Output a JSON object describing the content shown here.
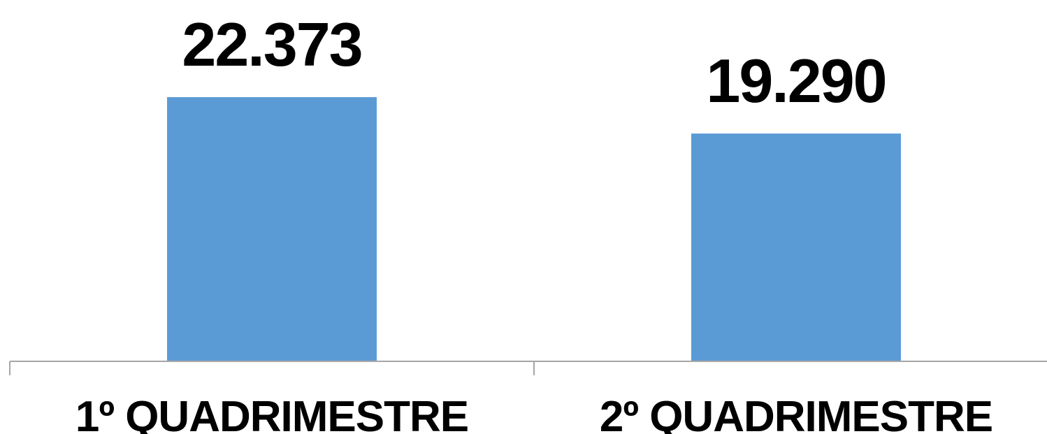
{
  "chart_data": {
    "type": "bar",
    "categories": [
      "1º QUADRIMESTRE",
      "2º QUADRIMESTRE"
    ],
    "values": [
      22373,
      19290
    ],
    "data_labels": [
      "22.373",
      "19.290"
    ],
    "title": "",
    "xlabel": "",
    "ylabel": "",
    "ylim": [
      0,
      22373
    ],
    "grid": false,
    "legend": "none",
    "bar_color": "#5b9bd5",
    "axis_color": "#a6a6a6"
  }
}
